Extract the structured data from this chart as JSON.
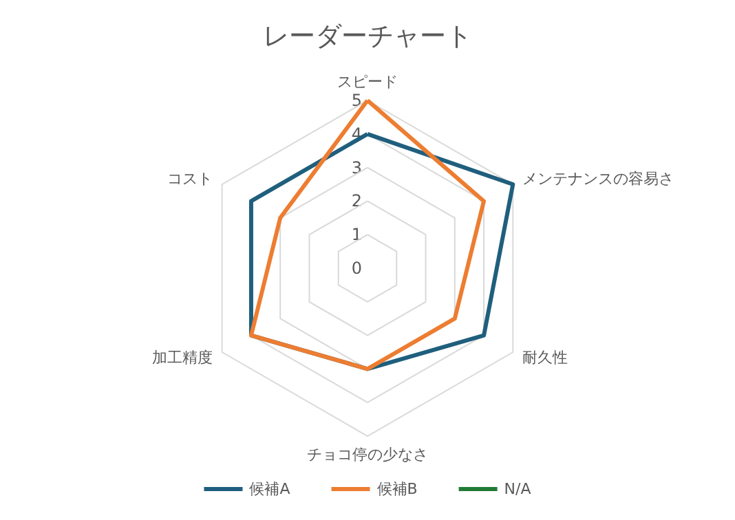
{
  "chart_data": {
    "type": "radar",
    "title": "レーダーチャート",
    "categories": [
      "スピード",
      "メンテナンスの容易さ",
      "耐久性",
      "チョコ停の少なさ",
      "加工精度",
      "コスト"
    ],
    "ylim": [
      0,
      5
    ],
    "yticks": [
      0,
      1,
      2,
      3,
      4,
      5
    ],
    "grid": true,
    "legend": "bottom",
    "marker": "none",
    "series": [
      {
        "name": "候補A",
        "color": "#1f5f7d",
        "values": [
          4,
          5,
          4,
          3,
          4,
          4
        ]
      },
      {
        "name": "候補B",
        "color": "#ed7d31",
        "values": [
          5,
          4,
          3,
          3,
          4,
          3
        ]
      },
      {
        "name": "N/A",
        "color": "#217a35",
        "values": [
          null,
          null,
          null,
          null,
          null,
          null
        ]
      }
    ]
  }
}
